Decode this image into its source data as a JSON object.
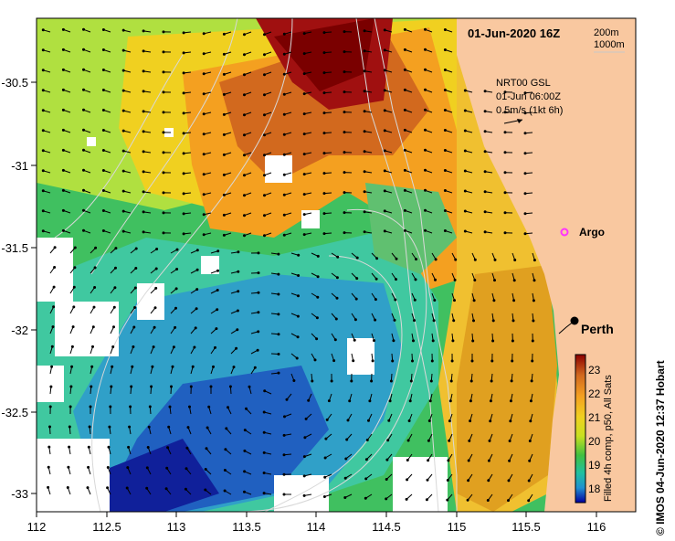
{
  "map": {
    "title": "01-Jun-2020 16Z",
    "depth_legend": {
      "line1": "200m",
      "line2": "1000m"
    },
    "current_legend": {
      "source": "NRT00 GSL",
      "time": "01-Jun 06:00Z",
      "scale": "0.5m/s (1kt 6h)"
    },
    "markers": [
      {
        "label": "Argo",
        "lon": 115.85,
        "lat": -31.45,
        "color": "#ff33ff"
      },
      {
        "label": "Perth",
        "lon": 115.86,
        "lat": -31.95,
        "color": "#000000"
      }
    ],
    "x_ticks": [
      "112",
      "112.5",
      "113",
      "113.5",
      "114",
      "114.5",
      "115",
      "115.5",
      "116"
    ],
    "y_ticks": [
      "-30.5",
      "-31",
      "-31.5",
      "-32",
      "-32.5",
      "-33"
    ],
    "lon_range": [
      112,
      116.3
    ],
    "lat_range": [
      -33.15,
      -30.05
    ],
    "colorbar": {
      "ticks": [
        "23",
        "22",
        "21",
        "20",
        "19",
        "18"
      ],
      "label": "Filled 4h comp, p50, All Sats",
      "range": [
        17.5,
        23.5
      ],
      "colors": [
        "#8b0000",
        "#d2691e",
        "#f4a020",
        "#f0d020",
        "#c8e020",
        "#40c040",
        "#20c0a0",
        "#2090d0",
        "#0000a0"
      ]
    },
    "credit": "© IMOS 04-Jun-2020 12:37 Hobart",
    "land_color": "#f9c8a0"
  }
}
